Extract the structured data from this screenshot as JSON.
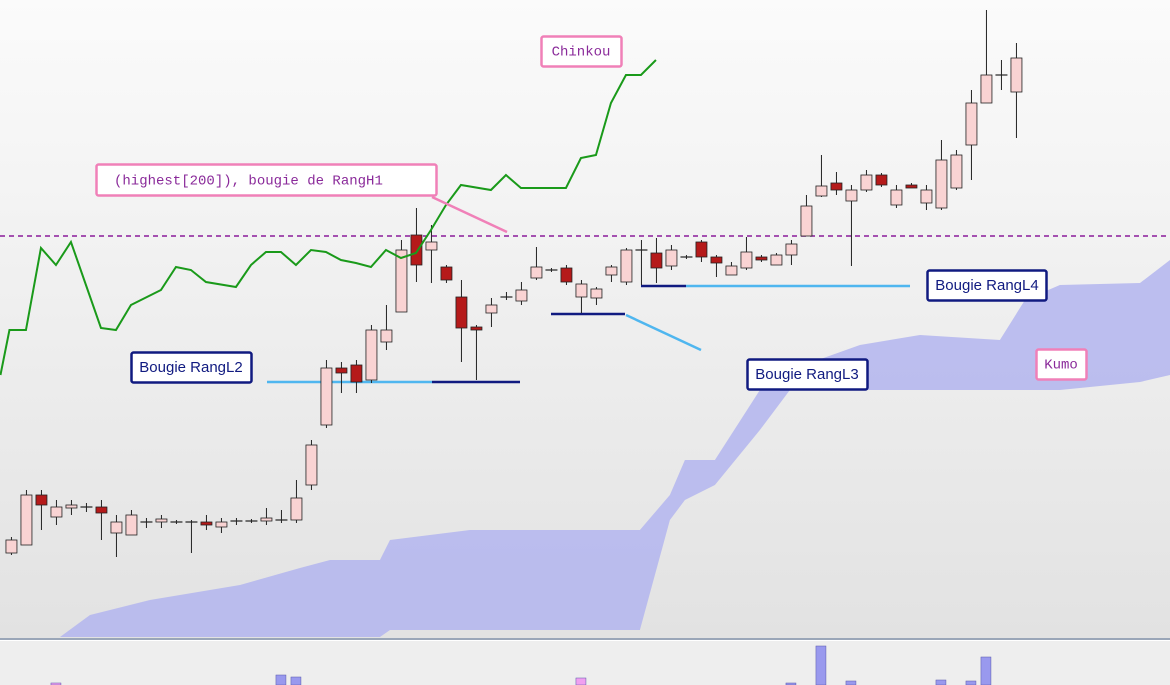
{
  "chart_data": [
    {
      "type": "candlestick",
      "open": [
        87,
        95,
        145,
        123,
        132,
        133,
        133,
        107,
        105,
        118,
        118,
        118,
        118,
        118,
        113,
        119,
        119,
        119,
        120,
        120,
        155,
        215,
        272,
        275,
        260,
        298,
        328,
        405,
        390,
        373,
        343,
        313,
        327,
        343,
        339,
        362,
        370,
        372,
        343,
        342,
        365,
        358,
        390,
        387,
        374,
        383,
        398,
        383,
        365,
        372,
        383,
        375,
        385,
        404,
        444,
        457,
        439,
        450,
        465,
        435,
        455,
        437,
        432,
        452,
        495,
        537,
        565,
        548
      ],
      "high": [
        103,
        150,
        150,
        140,
        140,
        137,
        140,
        125,
        130,
        122,
        125,
        120,
        120,
        125,
        122,
        122,
        121,
        132,
        130,
        160,
        200,
        280,
        278,
        280,
        315,
        335,
        400,
        432,
        415,
        375,
        360,
        315,
        342,
        348,
        358,
        393,
        372,
        375,
        360,
        353,
        375,
        392,
        400,
        402,
        395,
        385,
        400,
        385,
        378,
        403,
        385,
        387,
        400,
        445,
        485,
        468,
        455,
        470,
        467,
        455,
        457,
        455,
        500,
        490,
        550,
        630,
        580,
        597
      ],
      "low": [
        85,
        95,
        110,
        115,
        125,
        128,
        100,
        83,
        105,
        112,
        112,
        116,
        87,
        110,
        107,
        115,
        117,
        115,
        117,
        117,
        150,
        212,
        247,
        247,
        257,
        290,
        328,
        358,
        357,
        357,
        278,
        260,
        313,
        340,
        335,
        360,
        368,
        355,
        327,
        335,
        358,
        355,
        355,
        357,
        370,
        381,
        378,
        363,
        365,
        370,
        378,
        375,
        375,
        404,
        443,
        445,
        374,
        448,
        453,
        432,
        452,
        430,
        430,
        450,
        460,
        537,
        550,
        502
      ],
      "close": [
        100,
        145,
        135,
        133,
        135,
        133,
        127,
        118,
        125,
        118,
        121,
        118,
        118,
        115,
        118,
        119,
        119,
        122,
        120,
        142,
        195,
        272,
        267,
        258,
        310,
        310,
        390,
        375,
        398,
        360,
        312,
        310,
        335,
        343,
        350,
        373,
        370,
        358,
        356,
        351,
        373,
        390,
        390,
        372,
        390,
        383,
        383,
        377,
        374,
        388,
        380,
        385,
        396,
        434,
        454,
        450,
        450,
        465,
        455,
        450,
        452,
        450,
        480,
        485,
        537,
        565,
        565,
        582
      ],
      "up_color": "#f9d3d3",
      "down_color": "#b51a1a",
      "outline_color": "#222222",
      "xlim": [
        -0.73,
        77.27
      ],
      "ylim": [
        0,
        640
      ],
      "chinkou": {
        "name": "Chinkou",
        "color": "#1a9a1a",
        "x": [
          -0.7,
          -0.1,
          1,
          2,
          3,
          4,
          5,
          6,
          7,
          8,
          10,
          11,
          12,
          13,
          15,
          16,
          17,
          18,
          19,
          20,
          21,
          22,
          23,
          24,
          25,
          26,
          27,
          28,
          29,
          30,
          32,
          33,
          34,
          37,
          38,
          39,
          40,
          41,
          42,
          43
        ],
        "values": [
          265,
          310,
          310,
          392,
          375,
          398,
          355,
          312,
          310,
          335,
          350,
          373,
          370,
          358,
          353,
          375,
          388,
          388,
          375,
          390,
          388,
          380,
          377,
          373,
          390,
          382,
          387,
          410,
          435,
          455,
          450,
          465,
          452,
          452,
          482,
          485,
          537,
          565,
          565,
          580
        ]
      },
      "kumo": {
        "name": "Kumo",
        "color": "#b3b5ee",
        "x": [
          3.27,
          5.27,
          9.27,
          15.27,
          19.27,
          21.27,
          24.6,
          25.27,
          30.6,
          41.93,
          43.93,
          44.93,
          46.93,
          49.93,
          51.93,
          56.6,
          60.6,
          65.93,
          67.6,
          69.93,
          75.27,
          77.27
        ],
        "upper": [
          3,
          25,
          40,
          55,
          72,
          80,
          80,
          100,
          110,
          110,
          145,
          180,
          180,
          250,
          270,
          295,
          305,
          300,
          340,
          355,
          357,
          380
        ],
        "lower": [
          3,
          3,
          3,
          3,
          3,
          3,
          3,
          10,
          10,
          10,
          120,
          140,
          155,
          210,
          250,
          250,
          250,
          250,
          250,
          250,
          258,
          265
        ]
      },
      "annotations": [
        {
          "text": "(highest[200]), bougie de RangH1",
          "level": 404
        },
        {
          "text": "Bougie RangL2",
          "level": 258
        },
        {
          "text": "Bougie RangL3",
          "level": 326
        },
        {
          "text": "Bougie RangL4",
          "level": 354
        }
      ]
    },
    {
      "type": "bar",
      "x": [
        3,
        18,
        19,
        38,
        52,
        54,
        56,
        62,
        64,
        65
      ],
      "values": [
        2,
        10,
        8,
        7,
        2,
        39,
        4,
        5,
        4,
        28
      ],
      "colors": [
        "#f0a0f0",
        "#9999ee",
        "#9999ee",
        "#f0a0f0",
        "#9999ee",
        "#9999ee",
        "#9999ee",
        "#9999ee",
        "#9999ee",
        "#9999ee"
      ],
      "xlim": [
        -0.73,
        77.27
      ],
      "ylim": [
        0,
        45
      ]
    }
  ]
}
